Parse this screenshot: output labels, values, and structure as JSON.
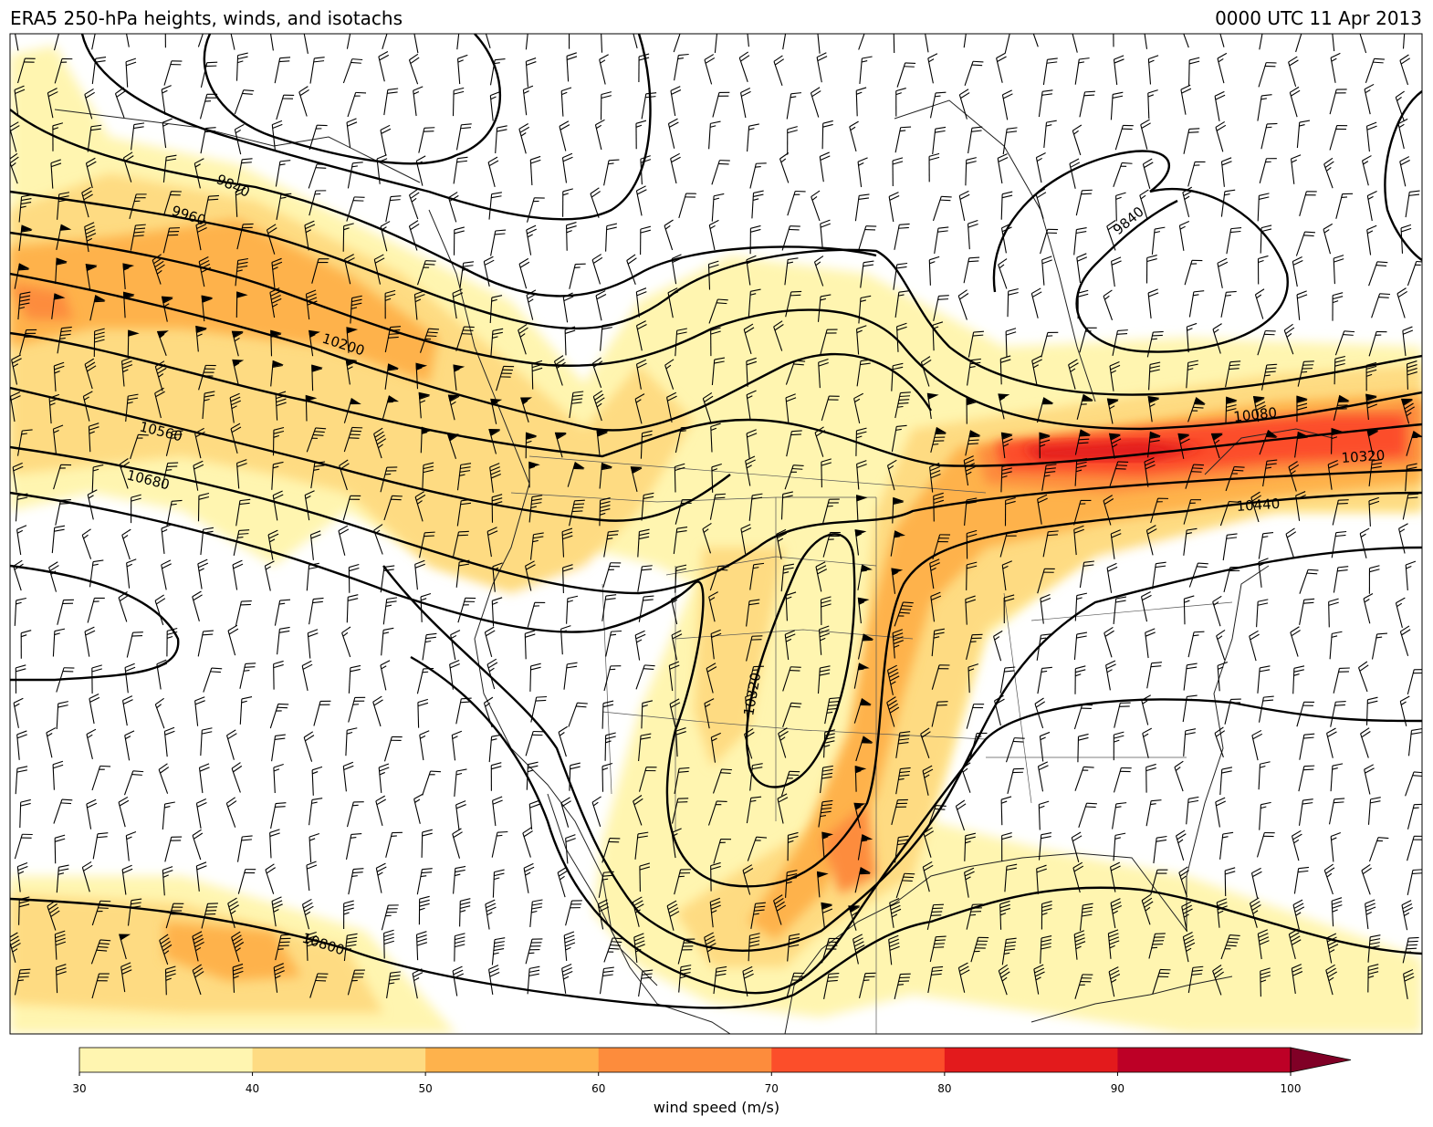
{
  "title": "ERA5 250-hPa heights, winds, and isotachs",
  "valid_time": "0000 UTC 11 Apr 2013",
  "contour_labels": [
    "9840",
    "9960",
    "10200",
    "10560",
    "10680",
    "10800",
    "10320",
    "9840",
    "10080",
    "10320",
    "10440"
  ],
  "colorbar": {
    "label": "wind speed (m/s)",
    "ticks": [
      "30",
      "40",
      "50",
      "60",
      "70",
      "80",
      "90",
      "100"
    ],
    "levels": [
      30,
      40,
      50,
      60,
      70,
      80,
      90,
      100
    ],
    "colors": [
      "#fff5b0",
      "#fedb82",
      "#feb24c",
      "#fd8c3c",
      "#fc4e2a",
      "#e31a1c",
      "#bd0026",
      "#800026"
    ],
    "extend": "max"
  },
  "style": {
    "contour_color": "#000000",
    "coast_color": "#222222"
  }
}
